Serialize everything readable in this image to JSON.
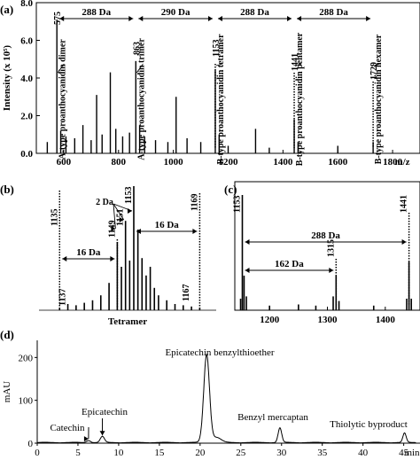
{
  "chart_data": [
    {
      "panel": "(a)",
      "type": "bar",
      "ylabel": "Intensity (x 10⁵)",
      "xlabel": "m/z",
      "xlim": [
        500,
        1900
      ],
      "ylim": [
        0,
        8.0
      ],
      "xticks": [
        600,
        800,
        1000,
        1200,
        1400,
        1600,
        1800
      ],
      "yticks": [
        0.0,
        2.0,
        4.0,
        6.0,
        8.0
      ],
      "peaks": [
        {
          "x": 540,
          "y": 0.6
        },
        {
          "x": 575,
          "y": 7.1
        },
        {
          "x": 589,
          "y": 1.2
        },
        {
          "x": 608,
          "y": 0.9
        },
        {
          "x": 640,
          "y": 0.8
        },
        {
          "x": 670,
          "y": 1.5
        },
        {
          "x": 700,
          "y": 0.7
        },
        {
          "x": 720,
          "y": 3.1
        },
        {
          "x": 740,
          "y": 1.0
        },
        {
          "x": 770,
          "y": 4.3
        },
        {
          "x": 790,
          "y": 1.3
        },
        {
          "x": 815,
          "y": 0.9
        },
        {
          "x": 840,
          "y": 1.1
        },
        {
          "x": 863,
          "y": 4.9
        },
        {
          "x": 877,
          "y": 1.5
        },
        {
          "x": 895,
          "y": 0.9
        },
        {
          "x": 935,
          "y": 0.7
        },
        {
          "x": 980,
          "y": 0.6
        },
        {
          "x": 1010,
          "y": 3.0
        },
        {
          "x": 1050,
          "y": 0.8
        },
        {
          "x": 1100,
          "y": 0.6
        },
        {
          "x": 1153,
          "y": 4.4
        },
        {
          "x": 1167,
          "y": 1.0
        },
        {
          "x": 1200,
          "y": 0.4
        },
        {
          "x": 1300,
          "y": 1.3
        },
        {
          "x": 1350,
          "y": 0.3
        },
        {
          "x": 1441,
          "y": 1.8
        },
        {
          "x": 1455,
          "y": 0.6
        },
        {
          "x": 1600,
          "y": 0.4
        },
        {
          "x": 1729,
          "y": 0.6
        }
      ],
      "peak_labels": [
        "575",
        "863",
        "1153",
        "1441",
        "1729"
      ],
      "spacing_labels": [
        "288 Da",
        "290 Da",
        "288 Da",
        "288 Da"
      ],
      "annotations": [
        "A-type proanthocyanidin dimer",
        "A-type proanthocyanidin trimer",
        "B-type proanthocyanidin tetramer",
        "B-type proanthocyanidin pentamer",
        "B-type proanthocyanidin hexamer"
      ]
    },
    {
      "panel": "(b)",
      "type": "bar",
      "xlabel": "Tetramer",
      "peaks": [
        {
          "x": 1135,
          "y": 0.02
        },
        {
          "x": 1137,
          "y": 0.05
        },
        {
          "x": 1139,
          "y": 0.04
        },
        {
          "x": 1141,
          "y": 0.06
        },
        {
          "x": 1143,
          "y": 0.08
        },
        {
          "x": 1145,
          "y": 0.12
        },
        {
          "x": 1147,
          "y": 0.22
        },
        {
          "x": 1149,
          "y": 0.55
        },
        {
          "x": 1150,
          "y": 0.35
        },
        {
          "x": 1151,
          "y": 0.72
        },
        {
          "x": 1152,
          "y": 0.4
        },
        {
          "x": 1153,
          "y": 1.0
        },
        {
          "x": 1154,
          "y": 0.65
        },
        {
          "x": 1155,
          "y": 0.42
        },
        {
          "x": 1156,
          "y": 0.28
        },
        {
          "x": 1157,
          "y": 0.35
        },
        {
          "x": 1158,
          "y": 0.18
        },
        {
          "x": 1159,
          "y": 0.12
        },
        {
          "x": 1161,
          "y": 0.08
        },
        {
          "x": 1163,
          "y": 0.05
        },
        {
          "x": 1165,
          "y": 0.04
        },
        {
          "x": 1167,
          "y": 0.03
        },
        {
          "x": 1169,
          "y": 0.02
        }
      ],
      "labels": [
        "1135",
        "1137",
        "1149",
        "1151",
        "1153",
        "1167",
        "1169",
        "2 Da",
        "16 Da",
        "16 Da"
      ]
    },
    {
      "panel": "(c)",
      "type": "bar",
      "xlim": [
        1140,
        1460
      ],
      "xticks": [
        1200,
        1300,
        1400
      ],
      "peaks": [
        {
          "x": 1150,
          "y": 0.1
        },
        {
          "x": 1153,
          "y": 1.0
        },
        {
          "x": 1156,
          "y": 0.3
        },
        {
          "x": 1160,
          "y": 0.12
        },
        {
          "x": 1200,
          "y": 0.04
        },
        {
          "x": 1250,
          "y": 0.05
        },
        {
          "x": 1280,
          "y": 0.04
        },
        {
          "x": 1310,
          "y": 0.12
        },
        {
          "x": 1315,
          "y": 0.3
        },
        {
          "x": 1320,
          "y": 0.08
        },
        {
          "x": 1380,
          "y": 0.04
        },
        {
          "x": 1437,
          "y": 0.1
        },
        {
          "x": 1441,
          "y": 0.42
        },
        {
          "x": 1445,
          "y": 0.1
        }
      ],
      "labels": [
        "1153",
        "1441",
        "1315",
        "288 Da",
        "162 Da"
      ]
    },
    {
      "panel": "(d)",
      "type": "line",
      "ylabel": "mAU",
      "xlabel": "min",
      "xlim": [
        0,
        47
      ],
      "ylim": [
        0,
        240
      ],
      "xticks": [
        0,
        5,
        10,
        15,
        20,
        25,
        30,
        35,
        40,
        45
      ],
      "yticks": [
        0,
        100,
        200
      ],
      "peaks": [
        {
          "name": "Catechin",
          "x": 6.3,
          "y": 5
        },
        {
          "name": "Epicatechin",
          "x": 8.0,
          "y": 14
        },
        {
          "name": "Epicatechin benzylthioether",
          "x": 20.8,
          "y": 205
        },
        {
          "name": "Benzyl mercaptan",
          "x": 29.8,
          "y": 34
        },
        {
          "name": "Thiolytic byproduct",
          "x": 45.1,
          "y": 22
        }
      ]
    }
  ],
  "panel_labels": {
    "a": "(a)",
    "b": "(b)",
    "c": "(c)",
    "d": "(d)"
  }
}
